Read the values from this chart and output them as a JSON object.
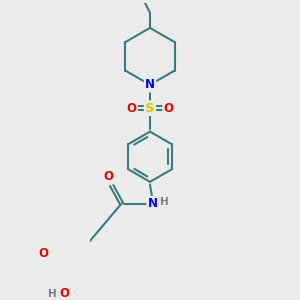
{
  "bg_color": "#ebebeb",
  "bond_color": "#3d7a7a",
  "N_color": "#0000ee",
  "O_color": "#ee0000",
  "S_color": "#cccc00",
  "H_color": "#808080",
  "line_width": 1.5,
  "font_size": 8.5,
  "fig_w": 3.0,
  "fig_h": 3.0,
  "dpi": 100,
  "xlim": [
    -1.8,
    1.8
  ],
  "ylim": [
    -4.2,
    3.8
  ]
}
